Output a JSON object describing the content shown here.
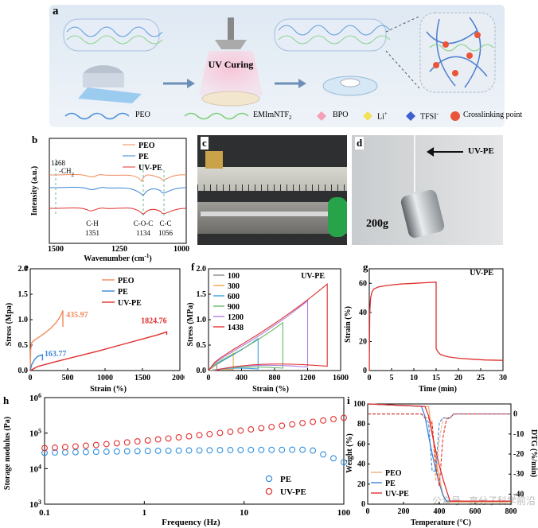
{
  "panels": {
    "a": {
      "letter": "a",
      "uv_label": "UV Curing",
      "legend": [
        {
          "label": "PEO",
          "color": "#4a90d9",
          "icon": "wave-line-icon"
        },
        {
          "label": "EMImNTF",
          "sub": "2",
          "color": "#7ed07a",
          "icon": "wave-line-icon"
        },
        {
          "label": "BPO",
          "color": "#f5a0b4",
          "icon": "diamond-icon"
        },
        {
          "label": "Li",
          "sup": "+",
          "color": "#f3e15a",
          "icon": "diamond-icon"
        },
        {
          "label": "TFSI",
          "sup": "-",
          "color": "#3f5fd0",
          "icon": "diamond-icon"
        },
        {
          "label": "Crosslinking point",
          "color": "#e8553a",
          "icon": "dot-icon"
        }
      ]
    },
    "b": {
      "letter": "b",
      "ylabel": "Intensity (a.u.)",
      "xlabel": "Wavenumber (cm",
      "xlabel_sup": "-1",
      "xlabel_end": ")",
      "ticks": [
        "1500",
        "1250",
        "1000"
      ],
      "legend": [
        {
          "label": "PEO",
          "color": "#f08a5a"
        },
        {
          "label": "PE",
          "color": "#3a86d6"
        },
        {
          "label": "UV-PE",
          "color": "#e0302e"
        }
      ],
      "annotations": {
        "a1": "1468",
        "a1b": "-CH",
        "a1b_sub": "2",
        "a2": "C-H",
        "a2b": "1351",
        "a3": "C-O-C",
        "a3b": "1134",
        "a4": "C-C",
        "a4b": "1056"
      }
    },
    "c": {
      "letter": "c"
    },
    "d": {
      "letter": "d",
      "arrow_label": "UV-PE",
      "weight_label": "200g"
    },
    "e": {
      "letter": "e",
      "ylabel": "Stress (Mpa)",
      "xlabel": "Strain (%)"
    },
    "f": {
      "letter": "f",
      "ylabel": "Stress (MPa)",
      "xlabel": "Strain (%)",
      "inset": "UV-PE"
    },
    "g": {
      "letter": "g",
      "ylabel": "Strain (%)",
      "xlabel": "Time (min)",
      "inset": "UV-PE"
    },
    "h": {
      "letter": "h",
      "ylabel": "Storage modulus (Pa)",
      "xlabel": "Frequency (Hz)"
    },
    "i": {
      "letter": "i",
      "ylabel": "Weight (%)",
      "ylabel2": "DTG (%/min)",
      "xlabel": "Temperature (",
      "xlabel_mid": "°",
      "xlabel_end": "C)"
    }
  },
  "watermark": "公众号 · 高分子科学前沿",
  "chart_data": [
    {
      "panel": "e",
      "type": "line",
      "xlabel": "Strain (%)",
      "ylabel": "Stress (Mpa)",
      "xlim": [
        0,
        2000
      ],
      "ylim": [
        0,
        2.0
      ],
      "xticks": [
        0,
        500,
        1000,
        1500,
        2000
      ],
      "yticks": [
        0.0,
        0.5,
        1.0,
        1.5,
        2.0
      ],
      "series": [
        {
          "name": "PEO",
          "color": "#f08a5a",
          "x": [
            0,
            5,
            20,
            60,
            120,
            200,
            280,
            350,
            400,
            420,
            435.97,
            435.97
          ],
          "y": [
            0,
            0.4,
            0.55,
            0.6,
            0.66,
            0.74,
            0.84,
            0.95,
            1.06,
            1.12,
            1.18,
            0.86
          ]
        },
        {
          "name": "PE",
          "color": "#3a86d6",
          "x": [
            0,
            20,
            60,
            100,
            140,
            163.77,
            163.77
          ],
          "y": [
            0,
            0.12,
            0.22,
            0.28,
            0.3,
            0.31,
            0.2
          ]
        },
        {
          "name": "UV-PE",
          "color": "#e0302e",
          "x": [
            0,
            100,
            300,
            600,
            900,
            1200,
            1500,
            1700,
            1824.76,
            1824.76
          ],
          "y": [
            0,
            0.08,
            0.16,
            0.27,
            0.38,
            0.5,
            0.62,
            0.7,
            0.76,
            0.7
          ]
        }
      ],
      "labels": [
        {
          "text": "435.97",
          "color": "#f08a5a",
          "x": 480,
          "y": 1.05
        },
        {
          "text": "163.77",
          "color": "#3a86d6",
          "x": 190,
          "y": 0.28
        },
        {
          "text": "1824.76",
          "color": "#e0302e",
          "x": 1480,
          "y": 0.93
        }
      ],
      "legend": [
        {
          "name": "PEO",
          "color": "#f08a5a"
        },
        {
          "name": "PE",
          "color": "#3a86d6"
        },
        {
          "name": "UV-PE",
          "color": "#e0302e"
        }
      ],
      "legend_position": "top-right"
    },
    {
      "panel": "f",
      "type": "line",
      "xlabel": "Strain (%)",
      "ylabel": "Stress (MPa)",
      "xlim": [
        0,
        1600
      ],
      "ylim": [
        0,
        2.0
      ],
      "xticks": [
        0,
        400,
        800,
        1200,
        1600
      ],
      "yticks": [
        0.0,
        0.5,
        1.0,
        1.5,
        2.0
      ],
      "series": [
        {
          "name": "100",
          "color": "#8a8a8a",
          "max_strain": 100,
          "peak": 0.13
        },
        {
          "name": "300",
          "color": "#f0a64a",
          "max_strain": 300,
          "peak": 0.34
        },
        {
          "name": "600",
          "color": "#3aa0e0",
          "max_strain": 600,
          "peak": 0.63
        },
        {
          "name": "900",
          "color": "#6ab86a",
          "max_strain": 900,
          "peak": 0.94
        },
        {
          "name": "1200",
          "color": "#b07ee0",
          "max_strain": 1200,
          "peak": 1.37
        },
        {
          "name": "1438",
          "color": "#e0302e",
          "max_strain": 1438,
          "peak": 1.7
        }
      ],
      "legend_position": "top-left"
    },
    {
      "panel": "g",
      "type": "line",
      "xlabel": "Time (min)",
      "ylabel": "Strain (%)",
      "xlim": [
        0,
        30
      ],
      "ylim": [
        0,
        70
      ],
      "xticks": [
        0,
        5,
        10,
        15,
        20,
        25,
        30
      ],
      "yticks": [
        0,
        20,
        40,
        60
      ],
      "series": [
        {
          "name": "UV-PE",
          "color": "#e0302e",
          "x": [
            0,
            0.1,
            0.3,
            0.6,
            1,
            2,
            4,
            7,
            10,
            13,
            15,
            15,
            15.5,
            16,
            17,
            18,
            20,
            23,
            26,
            30
          ],
          "y": [
            0,
            40,
            50,
            54,
            56,
            57.5,
            58.5,
            59.5,
            60,
            60.5,
            60.8,
            15,
            12.5,
            11,
            10,
            9.3,
            8.5,
            7.8,
            7.3,
            7
          ]
        }
      ]
    },
    {
      "panel": "h",
      "type": "scatter",
      "xlabel": "Frequency (Hz)",
      "ylabel": "Storage modulus (Pa)",
      "xscale": "log",
      "yscale": "log",
      "xlim": [
        0.1,
        100
      ],
      "ylim": [
        1000,
        1000000
      ],
      "series": [
        {
          "name": "PE",
          "color": "#2f8fe0",
          "start": 28000,
          "mid": 34000,
          "end_drop": 16000
        },
        {
          "name": "UV-PE",
          "color": "#e0302e",
          "start": 38000,
          "end": 270000
        }
      ],
      "legend_position": "bottom-right"
    },
    {
      "panel": "i",
      "type": "line",
      "xlabel": "Temperature (°C)",
      "ylabel": "Weight (%)",
      "ylabel2": "DTG (%/min)",
      "xlim": [
        0,
        800
      ],
      "ylim": [
        0,
        100
      ],
      "ylim2": [
        -45,
        5
      ],
      "xticks": [
        0,
        200,
        400,
        600,
        800
      ],
      "yticks": [
        0,
        20,
        40,
        60,
        80,
        100
      ],
      "yticks2": [
        0,
        -10,
        -20,
        -30,
        -40
      ],
      "series": [
        {
          "name": "PEO",
          "color": "#f0b27a",
          "onset": 340,
          "end": 430,
          "residue": 2
        },
        {
          "name": "PE",
          "color": "#3a86d6",
          "onset": 310,
          "end": 430,
          "residue": 3
        },
        {
          "name": "UV-PE",
          "color": "#e0302e",
          "onset": 330,
          "end": 460,
          "residue": 3
        }
      ],
      "legend_position": "bottom-left"
    }
  ]
}
